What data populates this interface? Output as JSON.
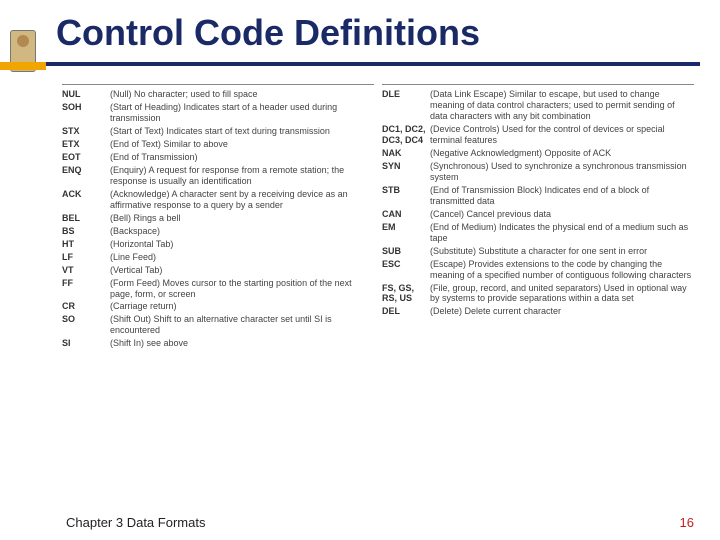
{
  "title": "Control Code Definitions",
  "footer": {
    "chapter": "Chapter 3 Data Formats",
    "page": "16"
  },
  "colors": {
    "title": "#1a2a66",
    "rule_accent": "#f2a500",
    "rule_main": "#1a2a66",
    "body_text": "#444444",
    "page_num": "#c02020",
    "background": "#ffffff"
  },
  "left_column": [
    {
      "code": "NUL",
      "desc": "(Null) No character; used to fill space"
    },
    {
      "code": "SOH",
      "desc": "(Start of Heading) Indicates start of a header used during transmission"
    },
    {
      "code": "STX",
      "desc": "(Start of Text) Indicates start of text during transmission"
    },
    {
      "code": "ETX",
      "desc": "(End of Text) Similar to above"
    },
    {
      "code": "EOT",
      "desc": "(End of Transmission)"
    },
    {
      "code": "ENQ",
      "desc": "(Enquiry) A request for response from a remote station; the response is usually an identification"
    },
    {
      "code": "ACK",
      "desc": "(Acknowledge) A character sent by a receiving device as an affirmative response to a query by a sender"
    },
    {
      "code": "BEL",
      "desc": "(Bell) Rings a bell"
    },
    {
      "code": "BS",
      "desc": "(Backspace)"
    },
    {
      "code": "HT",
      "desc": "(Horizontal Tab)"
    },
    {
      "code": "LF",
      "desc": "(Line Feed)"
    },
    {
      "code": "VT",
      "desc": "(Vertical Tab)"
    },
    {
      "code": "FF",
      "desc": "(Form Feed) Moves cursor to the starting position of the next page, form, or screen"
    },
    {
      "code": "CR",
      "desc": "(Carriage return)"
    },
    {
      "code": "SO",
      "desc": "(Shift Out) Shift to an alternative character set until SI is encountered"
    },
    {
      "code": "SI",
      "desc": "(Shift In) see above"
    }
  ],
  "right_column": [
    {
      "code": "DLE",
      "desc": "(Data Link Escape) Similar to escape, but used to change meaning of data control characters; used to permit sending of data characters with any bit combination"
    },
    {
      "code": "DC1, DC2, DC3, DC4",
      "desc": "(Device Controls) Used for the control of devices or special terminal features"
    },
    {
      "code": "NAK",
      "desc": "(Negative Acknowledgment) Opposite of ACK"
    },
    {
      "code": "SYN",
      "desc": "(Synchronous) Used to synchronize a synchronous transmission system"
    },
    {
      "code": "STB",
      "desc": "(End of Transmission Block) Indicates end of a block of transmitted data"
    },
    {
      "code": "CAN",
      "desc": "(Cancel) Cancel previous data"
    },
    {
      "code": "EM",
      "desc": "(End of Medium) Indicates the physical end of a medium such as tape"
    },
    {
      "code": "SUB",
      "desc": "(Substitute) Substitute a character for one sent in error"
    },
    {
      "code": "ESC",
      "desc": "(Escape) Provides extensions to the code by changing the meaning of a specified number of contiguous following characters"
    },
    {
      "code": "FS, GS, RS, US",
      "desc": "(File, group, record, and united separators) Used in optional way by systems to provide separations within a data set"
    },
    {
      "code": "DEL",
      "desc": "(Delete) Delete current character"
    }
  ]
}
